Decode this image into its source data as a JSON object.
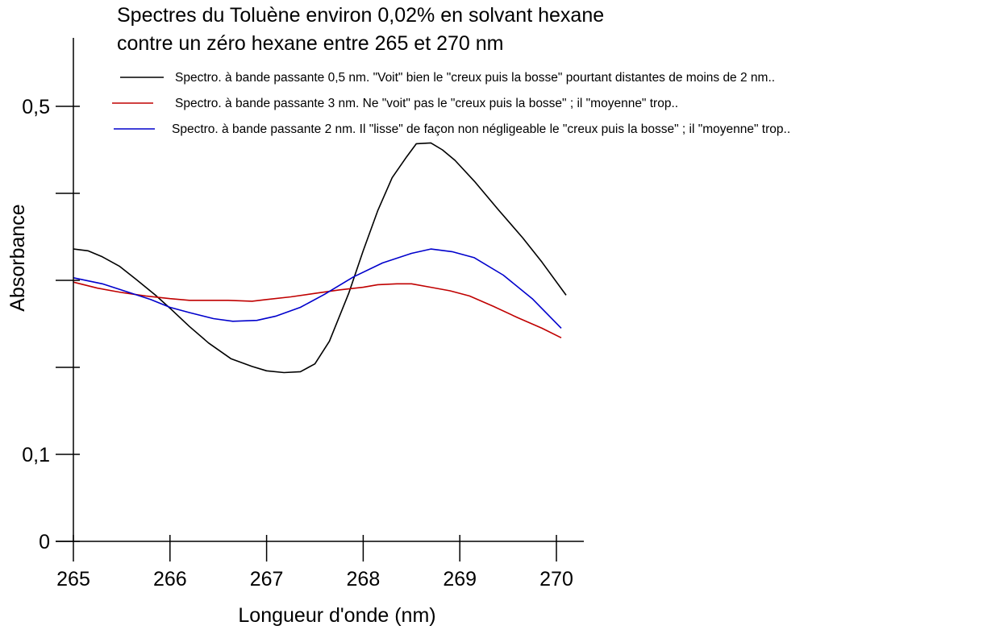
{
  "chart_data": {
    "type": "line",
    "title_lines": [
      "Spectres du Toluène environ 0,02% en solvant hexane",
      "contre un zéro hexane entre 265 et 270 nm"
    ],
    "xlabel": "Longueur d'onde (nm)",
    "ylabel": "Absorbance",
    "xlim": [
      265,
      270.2
    ],
    "ylim": [
      0,
      0.5
    ],
    "x_ticks": [
      265,
      266,
      267,
      268,
      269,
      270
    ],
    "x_tick_labels": [
      "265",
      "266",
      "267",
      "268",
      "269",
      "270"
    ],
    "y_ticks": [
      0,
      0.1,
      0.2,
      0.3,
      0.4,
      0.5
    ],
    "y_tick_labels": [
      "0",
      "0,1",
      "",
      "",
      "",
      "0,5"
    ],
    "grid": false,
    "legend_position": "top",
    "series": [
      {
        "name": "Spectro. à bande passante 0,5 nm. \"Voit\" bien  le \"creux puis la bosse\" pourtant distantes de moins de 2 nm..",
        "color": "#000000",
        "x": [
          265.0,
          265.15,
          265.3,
          265.48,
          265.65,
          265.85,
          266.0,
          266.2,
          266.4,
          266.63,
          266.85,
          267.0,
          267.18,
          267.35,
          267.5,
          267.65,
          267.85,
          268.0,
          268.15,
          268.3,
          268.45,
          268.55,
          268.7,
          268.82,
          268.95,
          269.15,
          269.4,
          269.65,
          269.85,
          270.1
        ],
        "values": [
          0.336,
          0.334,
          0.327,
          0.316,
          0.301,
          0.283,
          0.268,
          0.247,
          0.228,
          0.21,
          0.201,
          0.196,
          0.194,
          0.195,
          0.204,
          0.23,
          0.285,
          0.334,
          0.38,
          0.418,
          0.442,
          0.457,
          0.458,
          0.45,
          0.438,
          0.414,
          0.381,
          0.349,
          0.321,
          0.283
        ]
      },
      {
        "name": "Spectro. à bande passante 3 nm. Ne \"voit\" pas  le \"creux puis la bosse\" ; il \"moyenne\" trop..",
        "color": "#c00000",
        "x": [
          265.0,
          265.25,
          265.5,
          265.75,
          266.0,
          266.2,
          266.35,
          266.6,
          266.85,
          267.0,
          267.25,
          267.5,
          267.75,
          268.0,
          268.15,
          268.35,
          268.5,
          268.7,
          268.9,
          269.1,
          269.35,
          269.6,
          269.85,
          270.05
        ],
        "values": [
          0.298,
          0.291,
          0.286,
          0.282,
          0.279,
          0.277,
          0.277,
          0.277,
          0.276,
          0.278,
          0.281,
          0.285,
          0.289,
          0.292,
          0.295,
          0.296,
          0.296,
          0.292,
          0.288,
          0.282,
          0.27,
          0.257,
          0.245,
          0.234
        ]
      },
      {
        "name": "Spectro. à bande passante 2 nm. Il \"lisse\" de façon non négligeable le  \"creux puis la bosse\" ; il \"moyenne\" trop..",
        "color": "#0000cc",
        "x": [
          265.0,
          265.3,
          265.55,
          265.8,
          266.0,
          266.2,
          266.45,
          266.65,
          266.9,
          267.1,
          267.35,
          267.6,
          267.9,
          268.2,
          268.5,
          268.7,
          268.92,
          269.15,
          269.45,
          269.75,
          270.05
        ],
        "values": [
          0.303,
          0.296,
          0.287,
          0.278,
          0.269,
          0.263,
          0.256,
          0.253,
          0.254,
          0.259,
          0.269,
          0.284,
          0.304,
          0.32,
          0.331,
          0.336,
          0.333,
          0.326,
          0.306,
          0.279,
          0.245
        ]
      }
    ]
  }
}
